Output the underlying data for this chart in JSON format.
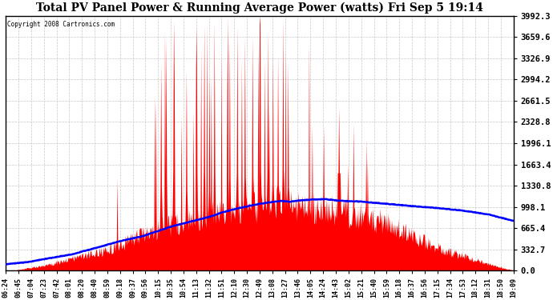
{
  "title": "Total PV Panel Power & Running Average Power (watts) Fri Sep 5 19:14",
  "copyright": "Copyright 2008 Cartronics.com",
  "y_ticks": [
    0.0,
    332.7,
    665.4,
    998.1,
    1330.8,
    1663.4,
    1996.1,
    2328.8,
    2661.5,
    2994.2,
    3326.9,
    3659.6,
    3992.3
  ],
  "x_labels": [
    "06:24",
    "06:45",
    "07:04",
    "07:23",
    "07:42",
    "08:01",
    "08:20",
    "08:40",
    "08:59",
    "09:18",
    "09:37",
    "09:56",
    "10:15",
    "10:35",
    "10:54",
    "11:13",
    "11:32",
    "11:51",
    "12:10",
    "12:30",
    "12:49",
    "13:08",
    "13:27",
    "13:46",
    "14:05",
    "14:24",
    "14:43",
    "15:02",
    "15:21",
    "15:40",
    "15:59",
    "16:18",
    "16:37",
    "16:56",
    "17:15",
    "17:34",
    "17:53",
    "18:12",
    "18:31",
    "18:50",
    "19:09"
  ],
  "background_color": "#ffffff",
  "fill_color": "#ff0000",
  "line_color": "#0000ff",
  "grid_color": "#c8c8c8",
  "title_color": "#000000",
  "ymax": 3992.3,
  "figsize": [
    6.9,
    3.75
  ],
  "dpi": 100
}
